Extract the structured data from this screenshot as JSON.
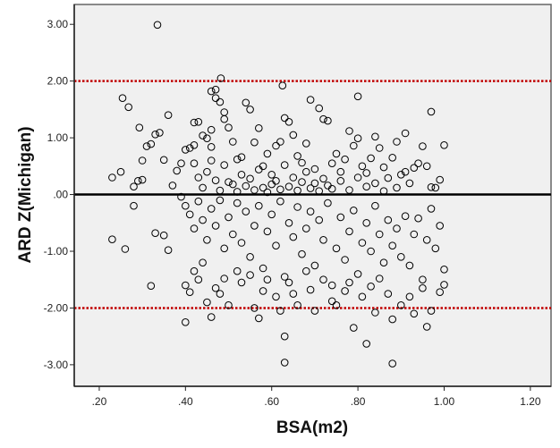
{
  "chart_data": {
    "type": "scatter",
    "title": "",
    "xlabel": "BSA(m2)",
    "ylabel": "ARD Z(Michigan)",
    "xlim": [
      0.142,
      1.248
    ],
    "ylim": [
      -3.38,
      3.35
    ],
    "x_ticks": [
      0.2,
      0.4,
      0.6,
      0.8,
      1.0,
      1.2
    ],
    "x_tick_labels": [
      ".20",
      ".40",
      ".60",
      ".80",
      "1.00",
      "1.20"
    ],
    "y_ticks": [
      3,
      2,
      1,
      0,
      -1,
      -2,
      -3
    ],
    "y_tick_labels": [
      "3.00",
      "2.00",
      "1.00",
      ".00",
      "-1.00",
      "-2.00",
      "-3.00"
    ],
    "grid": false,
    "reference_lines": [
      {
        "y": 0,
        "style": "solid",
        "color": "#000000"
      },
      {
        "y": 2,
        "style": "dotted",
        "color": "#c00000"
      },
      {
        "y": -2,
        "style": "dotted",
        "color": "#c00000"
      }
    ],
    "marker": "open-circle",
    "colors": {
      "plot_background": "#f0f0f0",
      "marker": "#000000",
      "limit_lines": "#c00000"
    },
    "points": [
      [
        0.335,
        2.99
      ],
      [
        0.482,
        2.05
      ],
      [
        0.254,
        1.7
      ],
      [
        0.268,
        1.54
      ],
      [
        0.293,
        1.18
      ],
      [
        0.625,
        1.92
      ],
      [
        0.8,
        1.73
      ],
      [
        0.97,
        1.46
      ],
      [
        0.63,
        -2.96
      ],
      [
        0.88,
        -2.98
      ],
      [
        0.82,
        -2.63
      ],
      [
        0.63,
        -2.5
      ],
      [
        0.23,
        -0.79
      ],
      [
        0.26,
        -0.96
      ],
      [
        0.32,
        -1.61
      ],
      [
        0.4,
        -2.25
      ],
      [
        0.46,
        -2.16
      ],
      [
        0.79,
        -2.35
      ],
      [
        0.96,
        -2.33
      ],
      [
        1.0,
        -1.32
      ],
      [
        1.0,
        -1.59
      ],
      [
        1.0,
        0.87
      ],
      [
        0.89,
        0.93
      ],
      [
        0.23,
        0.3
      ],
      [
        0.25,
        0.4
      ],
      [
        0.29,
        0.24
      ],
      [
        0.3,
        0.26
      ],
      [
        0.28,
        0.14
      ],
      [
        0.28,
        -0.2
      ],
      [
        0.3,
        0.6
      ],
      [
        0.31,
        0.85
      ],
      [
        0.32,
        0.89
      ],
      [
        0.33,
        1.06
      ],
      [
        0.34,
        1.09
      ],
      [
        0.36,
        1.4
      ],
      [
        0.35,
        0.61
      ],
      [
        0.33,
        -0.68
      ],
      [
        0.35,
        -0.72
      ],
      [
        0.36,
        -0.98
      ],
      [
        0.37,
        0.16
      ],
      [
        0.38,
        0.42
      ],
      [
        0.39,
        0.55
      ],
      [
        0.39,
        -0.04
      ],
      [
        0.4,
        0.79
      ],
      [
        0.41,
        0.82
      ],
      [
        0.42,
        0.87
      ],
      [
        0.43,
        1.28
      ],
      [
        0.42,
        1.27
      ],
      [
        0.44,
        1.04
      ],
      [
        0.45,
        0.99
      ],
      [
        0.46,
        1.14
      ],
      [
        0.46,
        0.84
      ],
      [
        0.47,
        1.7
      ],
      [
        0.47,
        1.85
      ],
      [
        0.46,
        1.82
      ],
      [
        0.48,
        1.63
      ],
      [
        0.49,
        1.45
      ],
      [
        0.49,
        1.33
      ],
      [
        0.5,
        1.18
      ],
      [
        0.51,
        0.93
      ],
      [
        0.52,
        0.62
      ],
      [
        0.53,
        0.66
      ],
      [
        0.54,
        1.62
      ],
      [
        0.55,
        1.5
      ],
      [
        0.56,
        0.92
      ],
      [
        0.57,
        1.17
      ],
      [
        0.58,
        0.5
      ],
      [
        0.59,
        0.72
      ],
      [
        0.6,
        0.35
      ],
      [
        0.61,
        0.86
      ],
      [
        0.62,
        0.93
      ],
      [
        0.63,
        1.35
      ],
      [
        0.64,
        1.28
      ],
      [
        0.65,
        1.05
      ],
      [
        0.66,
        0.68
      ],
      [
        0.67,
        0.56
      ],
      [
        0.68,
        0.9
      ],
      [
        0.69,
        1.67
      ],
      [
        0.7,
        0.2
      ],
      [
        0.71,
        1.52
      ],
      [
        0.72,
        1.33
      ],
      [
        0.73,
        1.3
      ],
      [
        0.74,
        0.55
      ],
      [
        0.75,
        0.72
      ],
      [
        0.76,
        0.4
      ],
      [
        0.77,
        0.62
      ],
      [
        0.78,
        1.12
      ],
      [
        0.79,
        0.86
      ],
      [
        0.8,
        0.99
      ],
      [
        0.81,
        0.5
      ],
      [
        0.82,
        0.38
      ],
      [
        0.83,
        0.64
      ],
      [
        0.84,
        1.02
      ],
      [
        0.85,
        0.82
      ],
      [
        0.86,
        0.48
      ],
      [
        0.87,
        0.29
      ],
      [
        0.88,
        0.65
      ],
      [
        0.9,
        0.35
      ],
      [
        0.91,
        1.08
      ],
      [
        0.92,
        0.2
      ],
      [
        0.93,
        0.47
      ],
      [
        0.94,
        0.55
      ],
      [
        0.95,
        0.85
      ],
      [
        0.96,
        0.5
      ],
      [
        0.97,
        0.13
      ],
      [
        0.98,
        0.12
      ],
      [
        0.99,
        0.26
      ],
      [
        0.42,
        0.55
      ],
      [
        0.43,
        0.3
      ],
      [
        0.44,
        0.12
      ],
      [
        0.45,
        0.4
      ],
      [
        0.46,
        0.6
      ],
      [
        0.47,
        0.25
      ],
      [
        0.48,
        0.07
      ],
      [
        0.49,
        0.52
      ],
      [
        0.5,
        0.22
      ],
      [
        0.51,
        0.18
      ],
      [
        0.52,
        0.05
      ],
      [
        0.53,
        0.35
      ],
      [
        0.54,
        0.15
      ],
      [
        0.55,
        0.28
      ],
      [
        0.56,
        0.08
      ],
      [
        0.57,
        0.44
      ],
      [
        0.58,
        0.12
      ],
      [
        0.59,
        0.04
      ],
      [
        0.6,
        0.18
      ],
      [
        0.61,
        0.24
      ],
      [
        0.62,
        0.09
      ],
      [
        0.63,
        0.52
      ],
      [
        0.64,
        0.14
      ],
      [
        0.65,
        0.3
      ],
      [
        0.66,
        0.07
      ],
      [
        0.67,
        0.22
      ],
      [
        0.68,
        0.4
      ],
      [
        0.69,
        0.11
      ],
      [
        0.7,
        0.45
      ],
      [
        0.71,
        0.06
      ],
      [
        0.72,
        0.28
      ],
      [
        0.73,
        0.16
      ],
      [
        0.74,
        0.1
      ],
      [
        0.76,
        0.24
      ],
      [
        0.78,
        0.08
      ],
      [
        0.8,
        0.3
      ],
      [
        0.82,
        0.14
      ],
      [
        0.84,
        0.2
      ],
      [
        0.86,
        0.06
      ],
      [
        0.89,
        0.12
      ],
      [
        0.91,
        0.4
      ],
      [
        0.4,
        -0.2
      ],
      [
        0.41,
        -0.35
      ],
      [
        0.42,
        -0.6
      ],
      [
        0.43,
        -0.12
      ],
      [
        0.44,
        -0.45
      ],
      [
        0.45,
        -0.8
      ],
      [
        0.46,
        -0.25
      ],
      [
        0.47,
        -0.55
      ],
      [
        0.48,
        -0.1
      ],
      [
        0.49,
        -0.95
      ],
      [
        0.5,
        -0.4
      ],
      [
        0.51,
        -0.7
      ],
      [
        0.52,
        -0.15
      ],
      [
        0.53,
        -0.85
      ],
      [
        0.54,
        -0.3
      ],
      [
        0.55,
        -1.1
      ],
      [
        0.56,
        -0.55
      ],
      [
        0.57,
        -0.2
      ],
      [
        0.58,
        -1.3
      ],
      [
        0.59,
        -0.65
      ],
      [
        0.6,
        -0.35
      ],
      [
        0.61,
        -0.9
      ],
      [
        0.62,
        -0.12
      ],
      [
        0.63,
        -1.45
      ],
      [
        0.64,
        -0.5
      ],
      [
        0.65,
        -0.75
      ],
      [
        0.66,
        -0.22
      ],
      [
        0.67,
        -1.05
      ],
      [
        0.68,
        -0.6
      ],
      [
        0.69,
        -0.3
      ],
      [
        0.7,
        -1.25
      ],
      [
        0.71,
        -0.45
      ],
      [
        0.72,
        -0.8
      ],
      [
        0.73,
        -0.15
      ],
      [
        0.74,
        -1.6
      ],
      [
        0.75,
        -0.95
      ],
      [
        0.76,
        -0.4
      ],
      [
        0.77,
        -1.15
      ],
      [
        0.78,
        -0.65
      ],
      [
        0.79,
        -0.28
      ],
      [
        0.8,
        -1.4
      ],
      [
        0.81,
        -0.85
      ],
      [
        0.82,
        -0.5
      ],
      [
        0.83,
        -1.0
      ],
      [
        0.84,
        -0.2
      ],
      [
        0.85,
        -0.7
      ],
      [
        0.86,
        -1.2
      ],
      [
        0.87,
        -0.45
      ],
      [
        0.88,
        -0.9
      ],
      [
        0.89,
        -0.6
      ],
      [
        0.9,
        -1.1
      ],
      [
        0.91,
        -0.38
      ],
      [
        0.92,
        -1.25
      ],
      [
        0.93,
        -0.7
      ],
      [
        0.94,
        -0.42
      ],
      [
        0.95,
        -1.5
      ],
      [
        0.96,
        -0.8
      ],
      [
        0.97,
        -0.25
      ],
      [
        0.98,
        -0.95
      ],
      [
        0.99,
        -0.55
      ],
      [
        0.4,
        -1.6
      ],
      [
        0.41,
        -1.72
      ],
      [
        0.42,
        -1.35
      ],
      [
        0.43,
        -1.5
      ],
      [
        0.44,
        -1.2
      ],
      [
        0.45,
        -1.9
      ],
      [
        0.47,
        -1.65
      ],
      [
        0.48,
        -1.75
      ],
      [
        0.49,
        -1.48
      ],
      [
        0.5,
        -1.95
      ],
      [
        0.52,
        -1.35
      ],
      [
        0.53,
        -1.55
      ],
      [
        0.55,
        -1.42
      ],
      [
        0.56,
        -2.0
      ],
      [
        0.57,
        -2.18
      ],
      [
        0.58,
        -1.7
      ],
      [
        0.59,
        -1.5
      ],
      [
        0.61,
        -1.8
      ],
      [
        0.62,
        -2.05
      ],
      [
        0.64,
        -1.55
      ],
      [
        0.65,
        -1.75
      ],
      [
        0.66,
        -1.95
      ],
      [
        0.68,
        -1.35
      ],
      [
        0.69,
        -1.68
      ],
      [
        0.7,
        -2.05
      ],
      [
        0.72,
        -1.5
      ],
      [
        0.74,
        -1.88
      ],
      [
        0.75,
        -1.95
      ],
      [
        0.77,
        -1.7
      ],
      [
        0.78,
        -1.55
      ],
      [
        0.81,
        -1.8
      ],
      [
        0.83,
        -1.62
      ],
      [
        0.84,
        -2.08
      ],
      [
        0.85,
        -1.48
      ],
      [
        0.87,
        -1.75
      ],
      [
        0.88,
        -2.2
      ],
      [
        0.9,
        -1.95
      ],
      [
        0.92,
        -1.8
      ],
      [
        0.93,
        -2.1
      ],
      [
        0.95,
        -1.65
      ],
      [
        0.97,
        -2.05
      ],
      [
        0.99,
        -1.72
      ]
    ]
  }
}
